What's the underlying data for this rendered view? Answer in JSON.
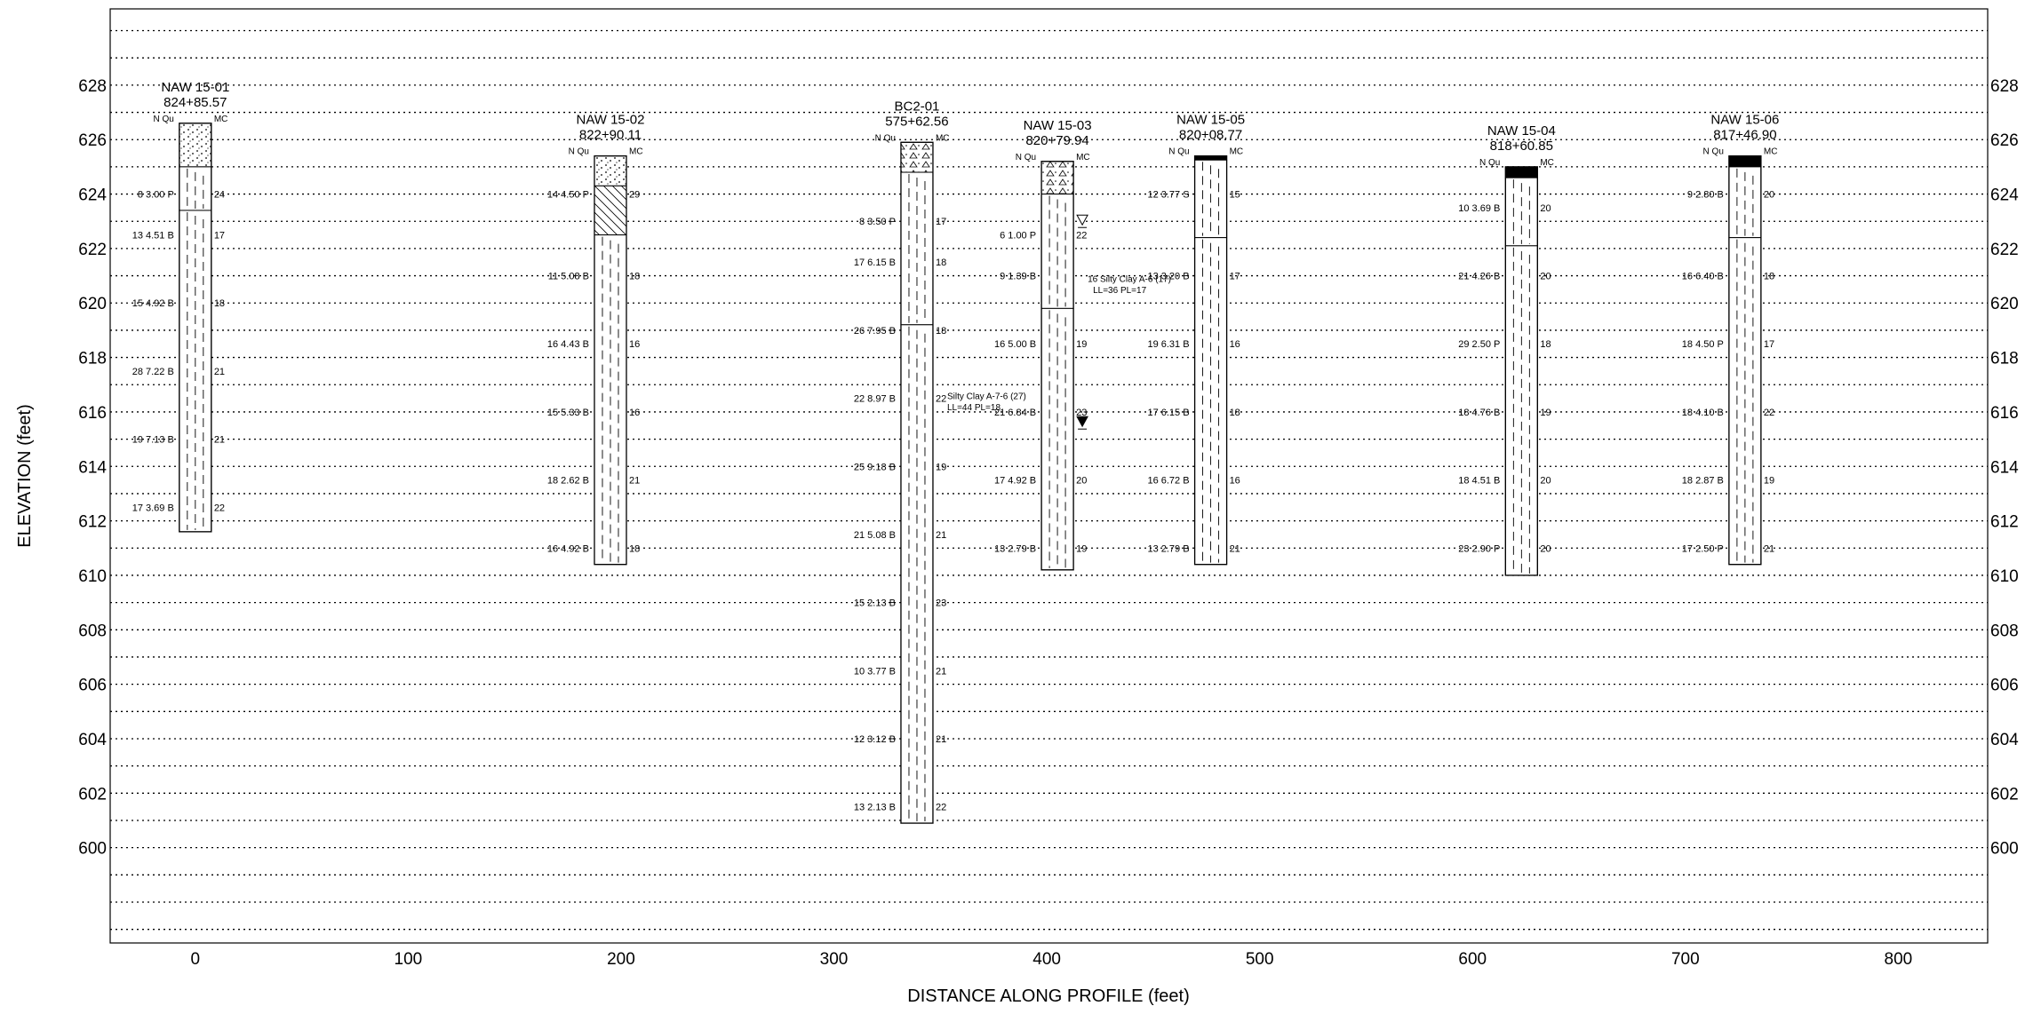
{
  "axes": {
    "xlabel": "DISTANCE ALONG PROFILE (feet)",
    "ylabel": "ELEVATION (feet)",
    "x_ticks": [
      0,
      100,
      200,
      300,
      400,
      500,
      600,
      700,
      800
    ],
    "y_ticks": [
      600,
      602,
      604,
      606,
      608,
      610,
      612,
      614,
      616,
      618,
      620,
      622,
      624,
      626,
      628
    ],
    "xlim": [
      -40,
      842
    ],
    "ylim": [
      596.5,
      630.8
    ],
    "grid": "dotted horizontal every 1 ft"
  },
  "legend_headers": {
    "left": "N  Qu",
    "right": "MC"
  },
  "borings": [
    {
      "id": "NAW 15-01",
      "station": "824+85.57",
      "x": 0,
      "top": 626.6,
      "bottom": 611.6,
      "layers": [
        {
          "top": 626.6,
          "bottom": 625.0,
          "pattern": "topsoil"
        },
        {
          "top": 625.0,
          "bottom": 623.4,
          "pattern": "clay"
        },
        {
          "top": 623.4,
          "bottom": 611.6,
          "pattern": "clay"
        }
      ],
      "samples": [
        {
          "elev": 624.0,
          "n": "8",
          "qu": "3.00 P",
          "mc": "24"
        },
        {
          "elev": 622.5,
          "n": "13",
          "qu": "4.51 B",
          "mc": "17"
        },
        {
          "elev": 620.0,
          "n": "15",
          "qu": "4.92 B",
          "mc": "18"
        },
        {
          "elev": 617.5,
          "n": "28",
          "qu": "7.22 B",
          "mc": "21"
        },
        {
          "elev": 615.0,
          "n": "19",
          "qu": "7.13 B",
          "mc": "21"
        },
        {
          "elev": 612.5,
          "n": "17",
          "qu": "3.69 B",
          "mc": "22"
        }
      ]
    },
    {
      "id": "NAW 15-02",
      "station": "822+90.11",
      "x": 195,
      "top": 625.4,
      "bottom": 610.4,
      "layers": [
        {
          "top": 625.4,
          "bottom": 624.3,
          "pattern": "topsoil"
        },
        {
          "top": 624.3,
          "bottom": 622.5,
          "pattern": "hatch"
        },
        {
          "top": 622.5,
          "bottom": 610.4,
          "pattern": "clay"
        }
      ],
      "samples": [
        {
          "elev": 624.0,
          "n": "14",
          "qu": "4.50 P",
          "mc": "29"
        },
        {
          "elev": 621.0,
          "n": "11",
          "qu": "5.08 B",
          "mc": "18"
        },
        {
          "elev": 618.5,
          "n": "16",
          "qu": "4.43 B",
          "mc": "16"
        },
        {
          "elev": 616.0,
          "n": "15",
          "qu": "5.33 B",
          "mc": "16"
        },
        {
          "elev": 613.5,
          "n": "18",
          "qu": "2.62 B",
          "mc": "21"
        },
        {
          "elev": 611.0,
          "n": "16",
          "qu": "4.92 B",
          "mc": "18"
        }
      ]
    },
    {
      "id": "BC2-01",
      "station": "575+62.56",
      "x": 339,
      "top": 625.9,
      "bottom": 600.9,
      "layers": [
        {
          "top": 625.9,
          "bottom": 624.8,
          "pattern": "pavement"
        },
        {
          "top": 624.8,
          "bottom": 619.2,
          "pattern": "clay"
        },
        {
          "top": 619.2,
          "bottom": 600.9,
          "pattern": "clay"
        }
      ],
      "samples": [
        {
          "elev": 623.0,
          "n": "8",
          "qu": "3.50 P",
          "mc": "17"
        },
        {
          "elev": 621.5,
          "n": "17",
          "qu": "6.15 B",
          "mc": "18"
        },
        {
          "elev": 619.0,
          "n": "26",
          "qu": "7.95 B",
          "mc": "18"
        },
        {
          "elev": 616.5,
          "n": "22",
          "qu": "8.97 B",
          "mc": "22"
        },
        {
          "elev": 614.0,
          "n": "25",
          "qu": "9.18 B",
          "mc": "19"
        },
        {
          "elev": 611.5,
          "n": "21",
          "qu": "5.08 B",
          "mc": "21"
        },
        {
          "elev": 609.0,
          "n": "15",
          "qu": "2.13 B",
          "mc": "23"
        },
        {
          "elev": 606.5,
          "n": "10",
          "qu": "3.77 B",
          "mc": "21"
        },
        {
          "elev": 604.0,
          "n": "12",
          "qu": "3.12 B",
          "mc": "21"
        },
        {
          "elev": 601.5,
          "n": "13",
          "qu": "2.13 B",
          "mc": "22"
        }
      ],
      "notes": [
        {
          "elev": 616.6,
          "offset": 16,
          "text": "Silty Clay A-7-6 (27)"
        },
        {
          "elev": 616.2,
          "offset": 16,
          "text": "LL=44  PL=18"
        }
      ]
    },
    {
      "id": "NAW 15-03",
      "station": "820+79.94",
      "x": 405,
      "top": 625.2,
      "bottom": 610.2,
      "layers": [
        {
          "top": 625.2,
          "bottom": 624.0,
          "pattern": "pavement"
        },
        {
          "top": 624.0,
          "bottom": 619.8,
          "pattern": "clay"
        },
        {
          "top": 619.8,
          "bottom": 610.2,
          "pattern": "clay"
        }
      ],
      "samples": [
        {
          "elev": 622.5,
          "n": "6",
          "qu": "1.00 P",
          "mc": "22"
        },
        {
          "elev": 621.0,
          "n": "9",
          "qu": "1.39 B",
          "mc": ""
        },
        {
          "elev": 618.5,
          "n": "16",
          "qu": "5.00 B",
          "mc": "19"
        },
        {
          "elev": 616.0,
          "n": "21",
          "qu": "6.84 B",
          "mc": "23"
        },
        {
          "elev": 613.5,
          "n": "17",
          "qu": "4.92 B",
          "mc": "20"
        },
        {
          "elev": 611.0,
          "n": "13",
          "qu": "2.79 B",
          "mc": "19"
        }
      ],
      "notes": [
        {
          "elev": 620.9,
          "offset": 16,
          "text": "16  Silty Clay A-6 (17)"
        },
        {
          "elev": 620.5,
          "offset": 22,
          "text": "LL=36  PL=17"
        }
      ],
      "water_levels": [
        {
          "elev": 623.0,
          "filled": false
        },
        {
          "elev": 615.6,
          "filled": true
        }
      ]
    },
    {
      "id": "NAW 15-05",
      "station": "820+08.77",
      "x": 477,
      "top": 625.4,
      "bottom": 610.4,
      "layers": [
        {
          "top": 625.4,
          "bottom": 625.25,
          "pattern": "solid"
        },
        {
          "top": 625.25,
          "bottom": 622.4,
          "pattern": "clay"
        },
        {
          "top": 622.4,
          "bottom": 610.4,
          "pattern": "clay"
        }
      ],
      "samples": [
        {
          "elev": 624.0,
          "n": "12",
          "qu": "3.77 S",
          "mc": "15"
        },
        {
          "elev": 621.0,
          "n": "13",
          "qu": "3.20 B",
          "mc": "17"
        },
        {
          "elev": 618.5,
          "n": "19",
          "qu": "6.31 B",
          "mc": "16"
        },
        {
          "elev": 616.0,
          "n": "17",
          "qu": "6.15 B",
          "mc": "18"
        },
        {
          "elev": 613.5,
          "n": "16",
          "qu": "6.72 B",
          "mc": "16"
        },
        {
          "elev": 611.0,
          "n": "13",
          "qu": "2.79 B",
          "mc": "21"
        }
      ]
    },
    {
      "id": "NAW 15-04",
      "station": "818+60.85",
      "x": 623,
      "top": 625.0,
      "bottom": 610.0,
      "layers": [
        {
          "top": 625.0,
          "bottom": 624.6,
          "pattern": "solid"
        },
        {
          "top": 624.6,
          "bottom": 622.1,
          "pattern": "clay"
        },
        {
          "top": 622.1,
          "bottom": 610.0,
          "pattern": "clay"
        }
      ],
      "samples": [
        {
          "elev": 623.5,
          "n": "10",
          "qu": "3.69 B",
          "mc": "20"
        },
        {
          "elev": 621.0,
          "n": "21",
          "qu": "4.26 B",
          "mc": "20"
        },
        {
          "elev": 618.5,
          "n": "29",
          "qu": "2.50 P",
          "mc": "18"
        },
        {
          "elev": 616.0,
          "n": "18",
          "qu": "4.76 B",
          "mc": "19"
        },
        {
          "elev": 613.5,
          "n": "18",
          "qu": "4.51 B",
          "mc": "20"
        },
        {
          "elev": 611.0,
          "n": "23",
          "qu": "2.90 P",
          "mc": "20"
        }
      ]
    },
    {
      "id": "NAW 15-06",
      "station": "817+46.90",
      "x": 728,
      "top": 625.4,
      "bottom": 610.4,
      "layers": [
        {
          "top": 625.4,
          "bottom": 625.0,
          "pattern": "solid"
        },
        {
          "top": 625.0,
          "bottom": 622.4,
          "pattern": "clay"
        },
        {
          "top": 622.4,
          "bottom": 610.4,
          "pattern": "clay"
        }
      ],
      "samples": [
        {
          "elev": 624.0,
          "n": "9",
          "qu": "2.80 B",
          "mc": "20"
        },
        {
          "elev": 621.0,
          "n": "16",
          "qu": "6.40 B",
          "mc": "18"
        },
        {
          "elev": 618.5,
          "n": "18",
          "qu": "4.50 P",
          "mc": "17"
        },
        {
          "elev": 616.0,
          "n": "18",
          "qu": "4.10 B",
          "mc": "22"
        },
        {
          "elev": 613.5,
          "n": "18",
          "qu": "2.87 B",
          "mc": "19"
        },
        {
          "elev": 611.0,
          "n": "17",
          "qu": "2.50 P",
          "mc": "21"
        }
      ]
    }
  ]
}
